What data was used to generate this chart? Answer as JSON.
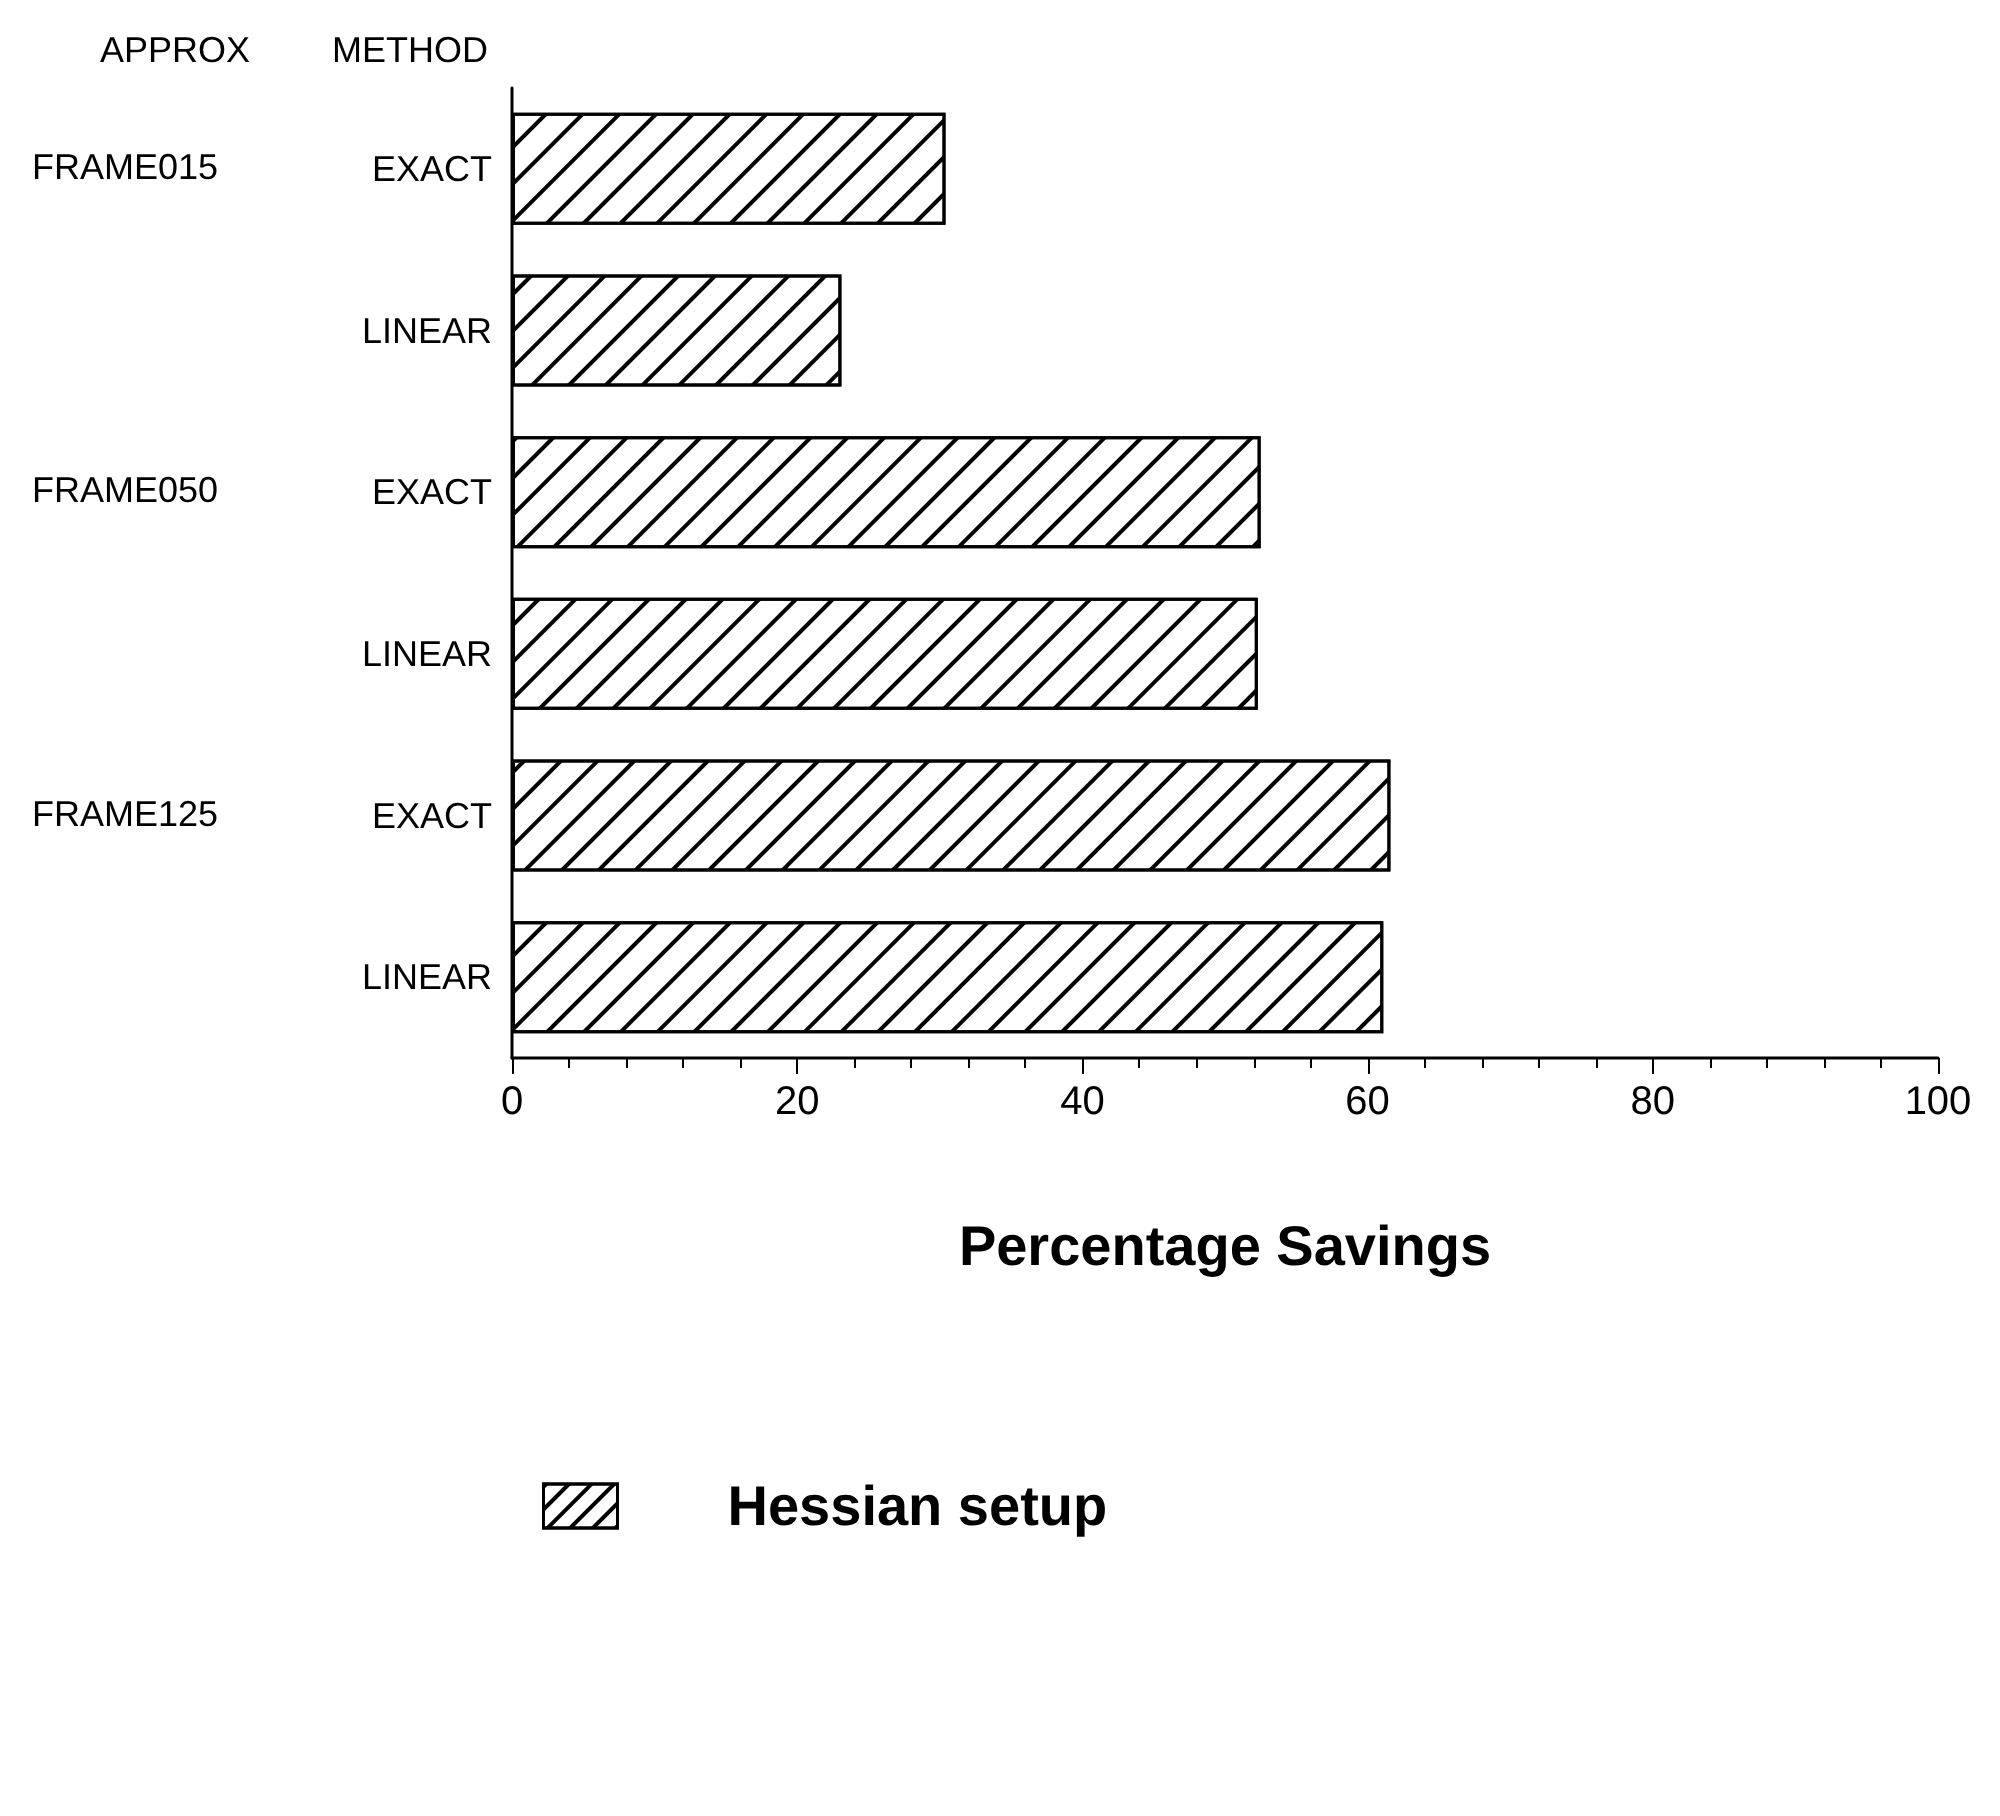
{
  "chart_data": {
    "type": "bar",
    "orientation": "horizontal",
    "categories": [
      "EXACT",
      "LINEAR",
      "EXACT",
      "LINEAR",
      "EXACT",
      "LINEAR"
    ],
    "series": [
      {
        "name": "Hessian setup",
        "color": "#000000",
        "values": [
          30.4,
          23.1,
          52.5,
          52.3,
          61.6,
          61.1
        ]
      }
    ],
    "xlim": [
      0,
      100
    ],
    "xticks": [
      0,
      20,
      40,
      60,
      80,
      100
    ],
    "xlabel": "Percentage Savings",
    "annotations": [
      "APPROX",
      "METHOD",
      "FRAME015",
      "FRAME050",
      "FRAME125"
    ],
    "legend": "bottom",
    "grid": false
  }
}
